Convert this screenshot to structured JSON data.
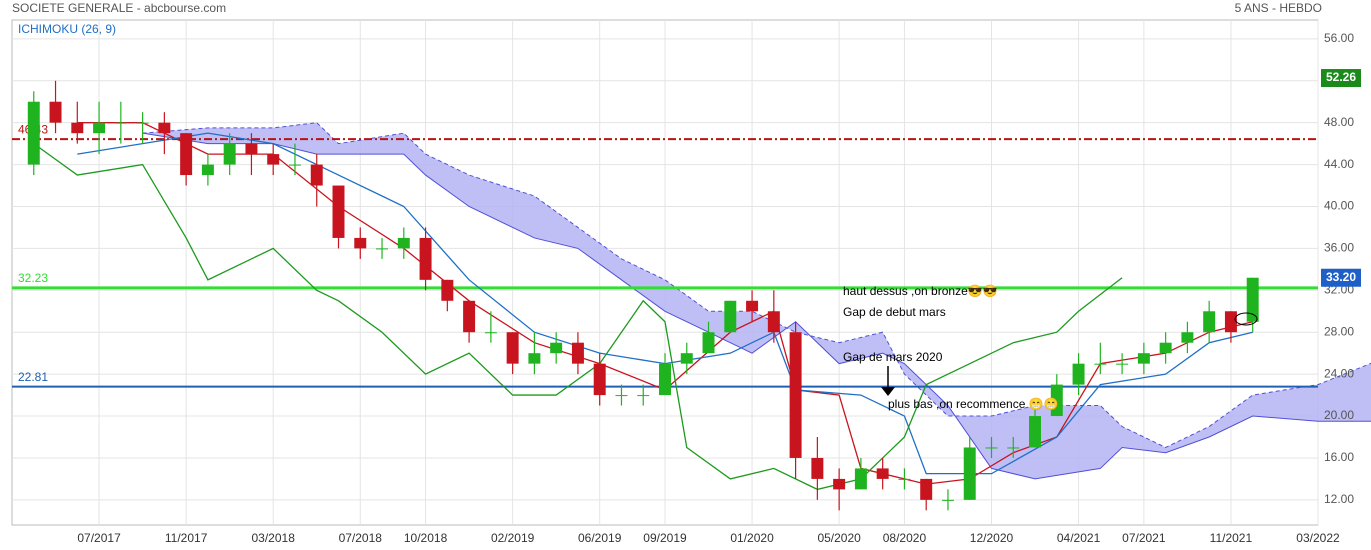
{
  "chart_data": {
    "type": "candlestick",
    "title": "SOCIETE GENERALE - abcbourse.com",
    "subtitle": "5 ANS - HEBDO",
    "indicator": "ICHIMOKU (26, 9)",
    "xlim": [
      "03/2017",
      "03/2022"
    ],
    "ylim": [
      9.6,
      57.8
    ],
    "xticks": [
      "07/2017",
      "11/2017",
      "03/2018",
      "07/2018",
      "10/2018",
      "02/2019",
      "06/2019",
      "09/2019",
      "01/2020",
      "05/2020",
      "08/2020",
      "12/2020",
      "04/2021",
      "07/2021",
      "11/2021",
      "03/2022"
    ],
    "yticks": [
      {
        "value": 12,
        "label": "12.00"
      },
      {
        "value": 16,
        "label": "16.00"
      },
      {
        "value": 20,
        "label": "20.00"
      },
      {
        "value": 24,
        "label": "24.00"
      },
      {
        "value": 28,
        "label": "28.00"
      },
      {
        "value": 32,
        "label": "32.00"
      },
      {
        "value": 36,
        "label": "36.00"
      },
      {
        "value": 40,
        "label": "40.00"
      },
      {
        "value": 44,
        "label": "44.00"
      },
      {
        "value": 48,
        "label": "48.00"
      },
      {
        "value": 52,
        "label": "52.00"
      },
      {
        "value": 56,
        "label": "56.00"
      }
    ],
    "grid": true,
    "up_color": "#1fb41f",
    "down_color": "#c8141e",
    "candles": {
      "x": [
        "04/2017",
        "05/2017",
        "06/2017",
        "07/2017",
        "08/2017",
        "09/2017",
        "10/2017",
        "11/2017",
        "12/2017",
        "01/2018",
        "02/2018",
        "03/2018",
        "04/2018",
        "05/2018",
        "06/2018",
        "07/2018",
        "08/2018",
        "09/2018",
        "10/2018",
        "11/2018",
        "12/2018",
        "01/2019",
        "02/2019",
        "03/2019",
        "04/2019",
        "05/2019",
        "06/2019",
        "07/2019",
        "08/2019",
        "09/2019",
        "10/2019",
        "11/2019",
        "12/2019",
        "01/2020",
        "02/2020",
        "03/2020",
        "04/2020",
        "05/2020",
        "06/2020",
        "07/2020",
        "08/2020",
        "09/2020",
        "10/2020",
        "11/2020",
        "12/2020",
        "01/2021",
        "02/2021",
        "03/2021",
        "04/2021",
        "05/2021",
        "06/2021",
        "07/2021",
        "08/2021",
        "09/2021",
        "10/2021",
        "11/2021",
        "12/2021"
      ],
      "ohlc": [
        [
          44,
          51,
          43,
          50
        ],
        [
          50,
          52,
          47,
          48
        ],
        [
          48,
          50,
          46,
          47
        ],
        [
          47,
          50,
          45,
          48
        ],
        [
          48,
          50,
          46,
          48
        ],
        [
          48,
          49,
          46,
          48
        ],
        [
          48,
          49,
          45,
          47
        ],
        [
          47,
          47,
          42,
          43
        ],
        [
          43,
          45,
          42,
          44
        ],
        [
          44,
          47,
          43,
          46
        ],
        [
          46,
          47,
          43,
          45
        ],
        [
          45,
          46,
          43,
          44
        ],
        [
          44,
          46,
          43,
          44
        ],
        [
          44,
          45,
          40,
          42
        ],
        [
          42,
          42,
          36,
          37
        ],
        [
          37,
          38,
          35,
          36
        ],
        [
          36,
          37,
          35,
          36
        ],
        [
          36,
          38,
          35,
          37
        ],
        [
          37,
          38,
          32,
          33
        ],
        [
          33,
          33,
          30,
          31
        ],
        [
          31,
          31,
          27,
          28
        ],
        [
          28,
          30,
          27,
          28
        ],
        [
          28,
          28,
          24,
          25
        ],
        [
          25,
          28,
          24,
          26
        ],
        [
          26,
          28,
          25,
          27
        ],
        [
          27,
          28,
          24,
          25
        ],
        [
          25,
          26,
          21,
          22
        ],
        [
          22,
          23,
          21,
          22
        ],
        [
          22,
          23,
          21,
          22
        ],
        [
          22,
          26,
          22,
          25
        ],
        [
          25,
          27,
          24,
          26
        ],
        [
          26,
          29,
          26,
          28
        ],
        [
          28,
          31,
          28,
          31
        ],
        [
          31,
          32,
          29,
          30
        ],
        [
          30,
          32,
          27,
          28
        ],
        [
          28,
          29,
          14,
          16
        ],
        [
          16,
          18,
          12,
          14
        ],
        [
          14,
          15,
          11,
          13
        ],
        [
          13,
          16,
          13,
          15
        ],
        [
          15,
          16,
          13,
          14
        ],
        [
          14,
          15,
          13,
          14
        ],
        [
          14,
          14,
          11,
          12
        ],
        [
          12,
          13,
          11,
          12
        ],
        [
          12,
          18,
          12,
          17
        ],
        [
          17,
          18,
          16,
          17
        ],
        [
          17,
          18,
          16,
          17
        ],
        [
          17,
          21,
          17,
          20
        ],
        [
          20,
          24,
          20,
          23
        ],
        [
          23,
          26,
          22,
          25
        ],
        [
          25,
          27,
          24,
          25
        ],
        [
          25,
          26,
          24,
          25
        ],
        [
          25,
          27,
          24,
          26
        ],
        [
          26,
          28,
          25,
          27
        ],
        [
          27,
          29,
          26,
          28
        ],
        [
          28,
          31,
          27,
          30
        ],
        [
          30,
          30,
          27,
          28
        ],
        [
          29,
          33.2,
          28,
          33.2
        ]
      ]
    },
    "series": [
      {
        "name": "tenkan",
        "color": "#c8141e",
        "x": [
          "06/2017",
          "09/2017",
          "12/2017",
          "03/2018",
          "06/2018",
          "09/2018",
          "12/2018",
          "03/2019",
          "06/2019",
          "09/2019",
          "12/2019",
          "02/2020",
          "03/2020",
          "05/2020",
          "06/2020",
          "09/2020",
          "11/2020",
          "01/2021",
          "03/2021",
          "05/2021",
          "08/2021",
          "10/2021",
          "12/2021"
        ],
        "values": [
          48,
          48,
          45,
          45,
          40,
          36,
          31,
          27,
          25,
          22.5,
          28,
          30,
          22.5,
          22,
          15,
          13.5,
          14,
          16.5,
          18,
          25,
          26,
          28,
          29
        ]
      },
      {
        "name": "kijun",
        "color": "#1f6fc8",
        "x": [
          "06/2017",
          "09/2017",
          "12/2017",
          "03/2018",
          "06/2018",
          "09/2018",
          "12/2018",
          "03/2019",
          "06/2019",
          "09/2019",
          "12/2019",
          "02/2020",
          "03/2020",
          "06/2020",
          "08/2020",
          "09/2020",
          "12/2020",
          "03/2021",
          "05/2021",
          "08/2021",
          "10/2021",
          "12/2021"
        ],
        "values": [
          45,
          46,
          47,
          46,
          43,
          40,
          33,
          28,
          26,
          25,
          26,
          28,
          22.5,
          22,
          20,
          14.5,
          14.5,
          18,
          23,
          24,
          27,
          28
        ]
      },
      {
        "name": "chikou",
        "color": "#1e9a1e",
        "x": [
          "04/2017",
          "06/2017",
          "09/2017",
          "11/2017",
          "12/2017",
          "03/2018",
          "05/2018",
          "06/2018",
          "08/2018",
          "10/2018",
          "12/2018",
          "02/2019",
          "04/2019",
          "06/2019",
          "08/2019",
          "09/2019",
          "10/2019",
          "12/2019",
          "02/2020",
          "04/2020",
          "06/2020",
          "08/2020",
          "09/2020",
          "11/2020",
          "01/2021",
          "03/2021",
          "04/2021",
          "06/2021"
        ],
        "values": [
          46,
          43,
          44,
          37,
          33,
          36,
          32,
          31,
          28,
          24,
          26,
          22,
          22,
          25,
          31,
          29,
          17,
          14,
          15,
          13,
          14,
          18,
          23,
          25,
          27,
          28,
          30,
          33.2
        ]
      }
    ],
    "cloud": {
      "color": "#b4b4f5",
      "line_color": "#5050d8",
      "x": [
        "09/2017",
        "12/2017",
        "03/2018",
        "05/2018",
        "06/2018",
        "09/2018",
        "10/2018",
        "12/2018",
        "03/2019",
        "05/2019",
        "07/2019",
        "09/2019",
        "11/2019",
        "01/2020",
        "03/2020",
        "05/2020",
        "07/2020",
        "08/2020",
        "10/2020",
        "12/2020",
        "02/2021",
        "05/2021",
        "06/2021",
        "08/2021",
        "10/2021",
        "12/2021",
        "03/2022",
        "06/2022"
      ],
      "span_a": [
        47,
        47.5,
        47.5,
        48,
        46,
        47,
        45,
        43,
        41,
        38,
        35,
        33,
        30,
        30,
        28,
        27,
        28,
        24,
        20,
        20,
        21,
        21,
        19,
        17,
        19,
        22,
        23,
        25.5
      ],
      "span_b": [
        47,
        46,
        46,
        45,
        45,
        45,
        43,
        40,
        37,
        36,
        33,
        30,
        28,
        26,
        29,
        25,
        26,
        25,
        21,
        15,
        14,
        15,
        17,
        16.5,
        18,
        20,
        19.5,
        19.5
      ]
    },
    "reference_lines": [
      {
        "value": 46.43,
        "label": "46.43",
        "color": "#b41414",
        "style": "dashdot"
      },
      {
        "value": 32.23,
        "label": "32.23",
        "color": "#33dd33",
        "style": "solid"
      },
      {
        "value": 22.81,
        "label": "22.81",
        "color": "#1f5fb4",
        "style": "solid"
      }
    ],
    "price_labels": [
      {
        "value": 52.26,
        "label": "52.26",
        "color": "#1a8a1a"
      },
      {
        "value": 33.2,
        "label": "33.20",
        "color": "#1f5fc8"
      }
    ],
    "annotations": [
      "haut dessus ,on bronze😎😎",
      "Gap de debut mars",
      "Gap de mars 2020",
      "plus bas ,on recommence 😁😁"
    ]
  }
}
